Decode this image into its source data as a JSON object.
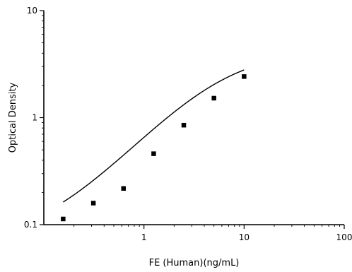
{
  "chart_data": {
    "type": "scatter",
    "title": "",
    "xlabel": "FE (Human)(ng/mL)",
    "ylabel": "Optical Density",
    "x_scale": "log",
    "y_scale": "log",
    "xlim": [
      0.1,
      100
    ],
    "ylim": [
      0.1,
      10
    ],
    "x_ticks": [
      {
        "value": 1,
        "label": "1"
      },
      {
        "value": 10,
        "label": "10"
      },
      {
        "value": 100,
        "label": "100"
      }
    ],
    "y_ticks": [
      {
        "value": 0.1,
        "label": "0.1"
      },
      {
        "value": 1,
        "label": "1"
      },
      {
        "value": 10,
        "label": "10"
      }
    ],
    "grid": false,
    "legend": "none",
    "points": [
      {
        "x": 0.156,
        "y": 0.113
      },
      {
        "x": 0.3125,
        "y": 0.159
      },
      {
        "x": 0.625,
        "y": 0.218
      },
      {
        "x": 1.25,
        "y": 0.46
      },
      {
        "x": 2.5,
        "y": 0.85
      },
      {
        "x": 5,
        "y": 1.52
      },
      {
        "x": 10,
        "y": 2.42
      }
    ],
    "fit_curve": {
      "type": "4PL",
      "bottom": 0.068,
      "top": 4.3,
      "ec50": 5.7,
      "hill": 1.05,
      "x_range": [
        0.156,
        10
      ]
    }
  }
}
